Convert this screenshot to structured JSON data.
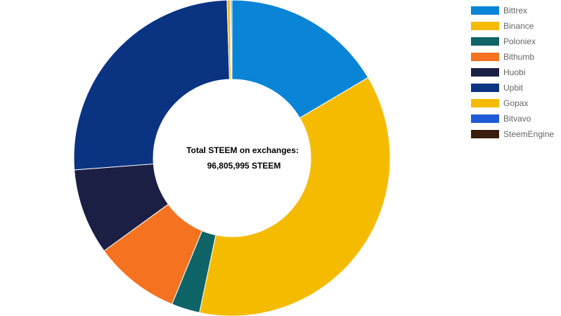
{
  "chart_data": {
    "type": "pie",
    "center_text": {
      "line1": "Total STEEM on exchanges:",
      "line2": "96,805,995 STEEM"
    },
    "legend_position": "top-right",
    "series": [
      {
        "name": "Bittrex",
        "value": 16.5,
        "color": "#0984d7"
      },
      {
        "name": "Binance",
        "value": 36.8,
        "color": "#f5bb00"
      },
      {
        "name": "Poloniex",
        "value": 2.9,
        "color": "#0f6467"
      },
      {
        "name": "Bithumb",
        "value": 8.8,
        "color": "#f47220"
      },
      {
        "name": "Huobi",
        "value": 8.8,
        "color": "#1c1f44"
      },
      {
        "name": "Upbit",
        "value": 25.7,
        "color": "#0a3382"
      },
      {
        "name": "Gopax",
        "value": 0.3,
        "color": "#f5bb00"
      },
      {
        "name": "Bitvavo",
        "value": 0.1,
        "color": "#1f5bd6"
      },
      {
        "name": "SteemEngine",
        "value": 0.1,
        "color": "#3a1d0e"
      }
    ]
  }
}
